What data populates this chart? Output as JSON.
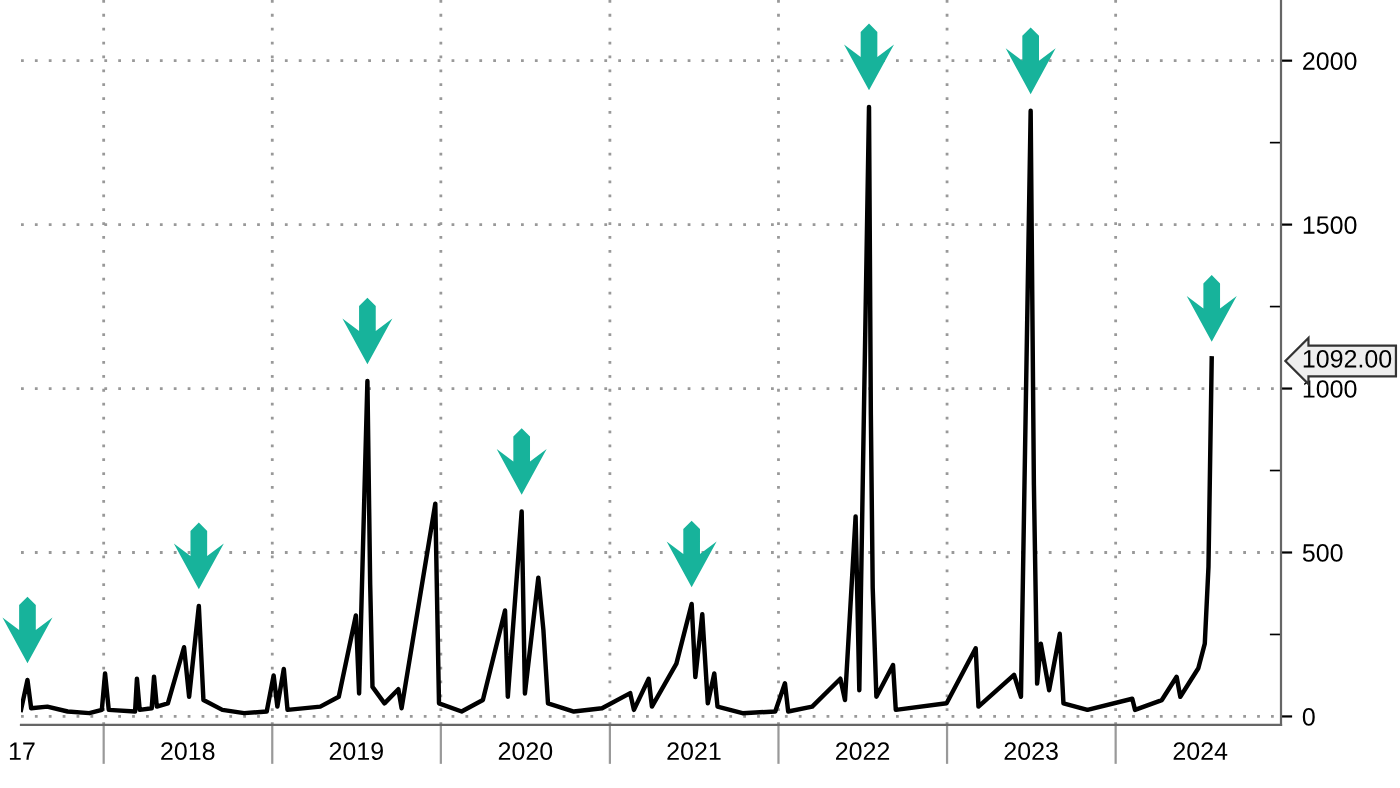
{
  "chart_data": {
    "type": "line",
    "x": [
      "2017-07-06",
      "2017-07-20",
      "2017-07-28",
      "2017-09-01",
      "2017-10-15",
      "2017-12-01",
      "2017-12-28",
      "2018-01-04",
      "2018-01-12",
      "2018-03-10",
      "2018-03-14",
      "2018-03-20",
      "2018-04-15",
      "2018-04-20",
      "2018-04-26",
      "2018-05-20",
      "2018-06-24",
      "2018-07-05",
      "2018-07-26",
      "2018-08-05",
      "2018-09-15",
      "2018-11-01",
      "2018-12-20",
      "2019-01-04",
      "2019-01-12",
      "2019-01-26",
      "2019-02-03",
      "2019-04-15",
      "2019-05-25",
      "2019-07-01",
      "2019-07-08",
      "2019-07-26",
      "2019-08-01",
      "2019-08-06",
      "2019-09-01",
      "2019-10-01",
      "2019-10-08",
      "2019-12-20",
      "2019-12-28",
      "2020-02-15",
      "2020-04-01",
      "2020-05-19",
      "2020-05-25",
      "2020-06-24",
      "2020-07-01",
      "2020-07-30",
      "2020-08-10",
      "2020-08-20",
      "2020-10-15",
      "2020-12-15",
      "2021-02-14",
      "2021-02-22",
      "2021-03-26",
      "2021-04-02",
      "2021-05-25",
      "2021-06-27",
      "2021-07-05",
      "2021-07-20",
      "2021-08-01",
      "2021-08-15",
      "2021-08-22",
      "2021-10-15",
      "2021-12-25",
      "2022-01-15",
      "2022-01-22",
      "2022-03-15",
      "2022-05-15",
      "2022-05-25",
      "2022-06-17",
      "2022-06-25",
      "2022-07-16",
      "2022-07-20",
      "2022-07-24",
      "2022-08-01",
      "2022-09-06",
      "2022-09-12",
      "2022-12-31",
      "2023-03-04",
      "2023-03-10",
      "2023-05-26",
      "2023-06-10",
      "2023-07-01",
      "2023-07-08",
      "2023-07-15",
      "2023-07-23",
      "2023-08-10",
      "2023-09-02",
      "2023-09-10",
      "2023-11-01",
      "2024-02-06",
      "2024-02-12",
      "2024-04-10",
      "2024-05-12",
      "2024-05-20",
      "2024-06-28",
      "2024-07-12",
      "2024-07-20",
      "2024-07-27"
    ],
    "series": [
      {
        "color": "#000000",
        "values": [
          20,
          111,
          25,
          30,
          15,
          10,
          20,
          131,
          20,
          15,
          115,
          20,
          25,
          121,
          30,
          40,
          211,
          60,
          337,
          50,
          20,
          10,
          15,
          125,
          30,
          145,
          20,
          30,
          60,
          308,
          70,
          1023,
          403,
          90,
          40,
          83,
          25,
          649,
          40,
          15,
          50,
          323,
          60,
          625,
          70,
          423,
          264,
          40,
          15,
          25,
          71,
          20,
          115,
          30,
          161,
          343,
          120,
          312,
          40,
          131,
          30,
          10,
          15,
          101,
          15,
          30,
          115,
          50,
          610,
          80,
          1859,
          921,
          393,
          60,
          157,
          20,
          40,
          208,
          30,
          127,
          60,
          1847,
          705,
          100,
          222,
          80,
          252,
          40,
          20,
          54,
          20,
          50,
          121,
          60,
          147,
          222,
          457,
          1092
        ]
      }
    ],
    "xlim": [
      "2017-07-06",
      "2024-12-24"
    ],
    "xticks": [
      {
        "value": "2017-07-08",
        "label": "17"
      },
      {
        "value": "2018-01-01",
        "label": null
      },
      {
        "value": "2018-07-02",
        "label": "2018"
      },
      {
        "value": "2019-01-01",
        "label": null
      },
      {
        "value": "2019-07-02",
        "label": "2019"
      },
      {
        "value": "2020-01-01",
        "label": null
      },
      {
        "value": "2020-07-02",
        "label": "2020"
      },
      {
        "value": "2021-01-01",
        "label": null
      },
      {
        "value": "2021-07-02",
        "label": "2021"
      },
      {
        "value": "2022-01-01",
        "label": null
      },
      {
        "value": "2022-07-02",
        "label": "2022"
      },
      {
        "value": "2023-01-01",
        "label": null
      },
      {
        "value": "2023-07-02",
        "label": "2023"
      },
      {
        "value": "2024-01-01",
        "label": null
      },
      {
        "value": "2024-07-02",
        "label": "2024"
      }
    ],
    "ylim": [
      -26,
      2185
    ],
    "yticks": [
      0,
      {
        "value": 250,
        "label": null
      },
      500,
      {
        "value": 750,
        "label": null
      },
      1000,
      {
        "value": 1250,
        "label": null
      },
      1500,
      {
        "value": 1750,
        "label": null
      },
      2000,
      {
        "value": 1092,
        "label": "1092.00"
      }
    ],
    "grid": true,
    "line_style": "solid"
  }
}
